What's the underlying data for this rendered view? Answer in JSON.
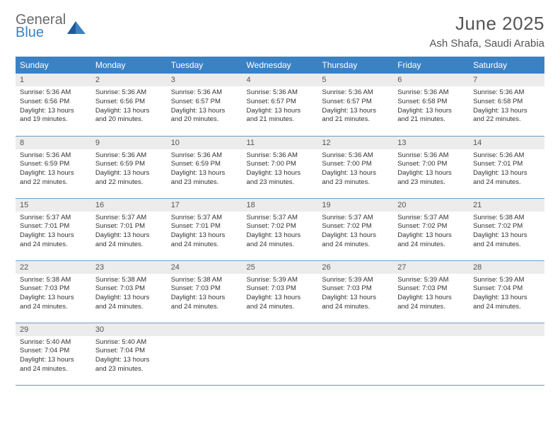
{
  "brand": {
    "word1": "General",
    "word2": "Blue"
  },
  "title": "June 2025",
  "location": "Ash Shafa, Saudi Arabia",
  "colors": {
    "header_bg": "#3b82c4",
    "header_fg": "#ffffff",
    "daynum_bg": "#ececec",
    "text": "#555555",
    "rule": "#6a9fc9"
  },
  "weekdays": [
    "Sunday",
    "Monday",
    "Tuesday",
    "Wednesday",
    "Thursday",
    "Friday",
    "Saturday"
  ],
  "weeks": [
    [
      {
        "n": "1",
        "sr": "5:36 AM",
        "ss": "6:56 PM",
        "dl": "13 hours and 19 minutes."
      },
      {
        "n": "2",
        "sr": "5:36 AM",
        "ss": "6:56 PM",
        "dl": "13 hours and 20 minutes."
      },
      {
        "n": "3",
        "sr": "5:36 AM",
        "ss": "6:57 PM",
        "dl": "13 hours and 20 minutes."
      },
      {
        "n": "4",
        "sr": "5:36 AM",
        "ss": "6:57 PM",
        "dl": "13 hours and 21 minutes."
      },
      {
        "n": "5",
        "sr": "5:36 AM",
        "ss": "6:57 PM",
        "dl": "13 hours and 21 minutes."
      },
      {
        "n": "6",
        "sr": "5:36 AM",
        "ss": "6:58 PM",
        "dl": "13 hours and 21 minutes."
      },
      {
        "n": "7",
        "sr": "5:36 AM",
        "ss": "6:58 PM",
        "dl": "13 hours and 22 minutes."
      }
    ],
    [
      {
        "n": "8",
        "sr": "5:36 AM",
        "ss": "6:59 PM",
        "dl": "13 hours and 22 minutes."
      },
      {
        "n": "9",
        "sr": "5:36 AM",
        "ss": "6:59 PM",
        "dl": "13 hours and 22 minutes."
      },
      {
        "n": "10",
        "sr": "5:36 AM",
        "ss": "6:59 PM",
        "dl": "13 hours and 23 minutes."
      },
      {
        "n": "11",
        "sr": "5:36 AM",
        "ss": "7:00 PM",
        "dl": "13 hours and 23 minutes."
      },
      {
        "n": "12",
        "sr": "5:36 AM",
        "ss": "7:00 PM",
        "dl": "13 hours and 23 minutes."
      },
      {
        "n": "13",
        "sr": "5:36 AM",
        "ss": "7:00 PM",
        "dl": "13 hours and 23 minutes."
      },
      {
        "n": "14",
        "sr": "5:36 AM",
        "ss": "7:01 PM",
        "dl": "13 hours and 24 minutes."
      }
    ],
    [
      {
        "n": "15",
        "sr": "5:37 AM",
        "ss": "7:01 PM",
        "dl": "13 hours and 24 minutes."
      },
      {
        "n": "16",
        "sr": "5:37 AM",
        "ss": "7:01 PM",
        "dl": "13 hours and 24 minutes."
      },
      {
        "n": "17",
        "sr": "5:37 AM",
        "ss": "7:01 PM",
        "dl": "13 hours and 24 minutes."
      },
      {
        "n": "18",
        "sr": "5:37 AM",
        "ss": "7:02 PM",
        "dl": "13 hours and 24 minutes."
      },
      {
        "n": "19",
        "sr": "5:37 AM",
        "ss": "7:02 PM",
        "dl": "13 hours and 24 minutes."
      },
      {
        "n": "20",
        "sr": "5:37 AM",
        "ss": "7:02 PM",
        "dl": "13 hours and 24 minutes."
      },
      {
        "n": "21",
        "sr": "5:38 AM",
        "ss": "7:02 PM",
        "dl": "13 hours and 24 minutes."
      }
    ],
    [
      {
        "n": "22",
        "sr": "5:38 AM",
        "ss": "7:03 PM",
        "dl": "13 hours and 24 minutes."
      },
      {
        "n": "23",
        "sr": "5:38 AM",
        "ss": "7:03 PM",
        "dl": "13 hours and 24 minutes."
      },
      {
        "n": "24",
        "sr": "5:38 AM",
        "ss": "7:03 PM",
        "dl": "13 hours and 24 minutes."
      },
      {
        "n": "25",
        "sr": "5:39 AM",
        "ss": "7:03 PM",
        "dl": "13 hours and 24 minutes."
      },
      {
        "n": "26",
        "sr": "5:39 AM",
        "ss": "7:03 PM",
        "dl": "13 hours and 24 minutes."
      },
      {
        "n": "27",
        "sr": "5:39 AM",
        "ss": "7:03 PM",
        "dl": "13 hours and 24 minutes."
      },
      {
        "n": "28",
        "sr": "5:39 AM",
        "ss": "7:04 PM",
        "dl": "13 hours and 24 minutes."
      }
    ],
    [
      {
        "n": "29",
        "sr": "5:40 AM",
        "ss": "7:04 PM",
        "dl": "13 hours and 24 minutes."
      },
      {
        "n": "30",
        "sr": "5:40 AM",
        "ss": "7:04 PM",
        "dl": "13 hours and 23 minutes."
      },
      null,
      null,
      null,
      null,
      null
    ]
  ],
  "labels": {
    "sunrise": "Sunrise:",
    "sunset": "Sunset:",
    "daylight": "Daylight:"
  }
}
